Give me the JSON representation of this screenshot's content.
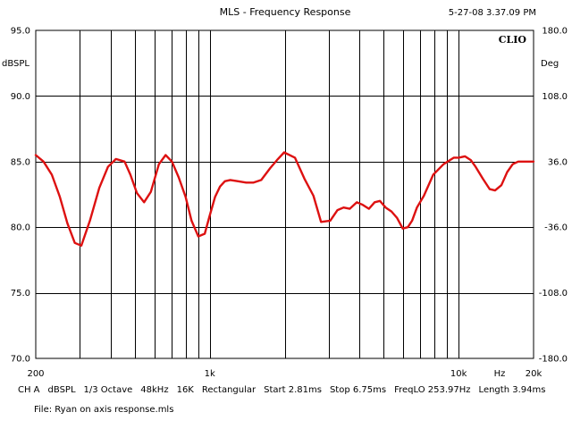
{
  "header": {
    "title": "MLS - Frequency Response",
    "timestamp": "5-27-08 3.37.09 PM",
    "brand": "CLIO"
  },
  "status": {
    "items": [
      "CH A",
      "dBSPL",
      "1/3 Octave",
      "48kHz",
      "16K",
      "Rectangular",
      "Start 2.81ms",
      "Stop 6.75ms",
      "FreqLO 253.97Hz",
      "Length 3.94ms"
    ],
    "file": "File: Ryan on axis response.mls"
  },
  "colors": {
    "trace": "#dd1111",
    "grid": "#000000",
    "background": "#ffffff"
  },
  "chart_data": {
    "type": "line",
    "title": "MLS - Frequency Response",
    "xlabel": "Hz",
    "ylabel": "dBSPL",
    "y2label": "Deg",
    "xscale": "log",
    "xlim": [
      200,
      20000
    ],
    "ylim": [
      70,
      95
    ],
    "y2lim": [
      -180,
      180
    ],
    "x_tick_labels": [
      {
        "value": 200,
        "label": "200"
      },
      {
        "value": 1000,
        "label": "1k"
      },
      {
        "value": 10000,
        "label": "10k"
      },
      {
        "value": 20000,
        "label": "20k"
      }
    ],
    "y_tick_labels": [
      "95.0",
      "90.0",
      "85.0",
      "80.0",
      "75.0",
      "70.0"
    ],
    "y_ticks": [
      95,
      90,
      85,
      80,
      75,
      70
    ],
    "y2_tick_labels": [
      "180.0",
      "108.0",
      "36.0",
      "-36.0",
      "-108.0",
      "-180.0"
    ],
    "y2_ticks": [
      180,
      108,
      36,
      -36,
      -108,
      -180
    ],
    "x_gridlines": [
      300,
      400,
      500,
      600,
      700,
      800,
      900,
      1000,
      2000,
      3000,
      4000,
      5000,
      6000,
      7000,
      8000,
      9000,
      10000
    ],
    "grid": true,
    "series": [
      {
        "x": [
          200,
          215,
          232,
          250,
          268,
          287,
          305,
          330,
          360,
          390,
          420,
          455,
          480,
          510,
          545,
          580,
          625,
          665,
          705,
          750,
          800,
          845,
          900,
          955,
          1000,
          1050,
          1100,
          1150,
          1210,
          1300,
          1400,
          1500,
          1610,
          1750,
          1880,
          1990,
          2200,
          2400,
          2610,
          2800,
          3050,
          3260,
          3450,
          3650,
          3900,
          4120,
          4360,
          4600,
          4830,
          5090,
          5370,
          5660,
          5960,
          6250,
          6500,
          6800,
          7250,
          7900,
          8700,
          9570,
          10000,
          10600,
          11200,
          11700,
          12500,
          13330,
          14000,
          14850,
          15670,
          16500,
          17350,
          18230,
          19150,
          20000
        ],
        "y": [
          85.5,
          85.0,
          84.0,
          82.3,
          80.3,
          78.8,
          78.6,
          80.5,
          83.0,
          84.6,
          85.2,
          85.0,
          84.0,
          82.6,
          81.9,
          82.7,
          84.8,
          85.5,
          85.0,
          83.8,
          82.3,
          80.5,
          79.3,
          79.5,
          80.9,
          82.3,
          83.1,
          83.5,
          83.6,
          83.5,
          83.4,
          83.4,
          83.6,
          84.5,
          85.2,
          85.7,
          85.3,
          83.7,
          82.4,
          80.4,
          80.5,
          81.3,
          81.5,
          81.4,
          81.9,
          81.7,
          81.4,
          81.9,
          82.0,
          81.5,
          81.2,
          80.7,
          79.9,
          80.0,
          80.5,
          81.5,
          82.4,
          84.0,
          84.8,
          85.3,
          85.3,
          85.4,
          85.1,
          84.6,
          83.7,
          82.9,
          82.8,
          83.2,
          84.2,
          84.8,
          85.0,
          85.0,
          85.0,
          85.0
        ]
      }
    ]
  }
}
